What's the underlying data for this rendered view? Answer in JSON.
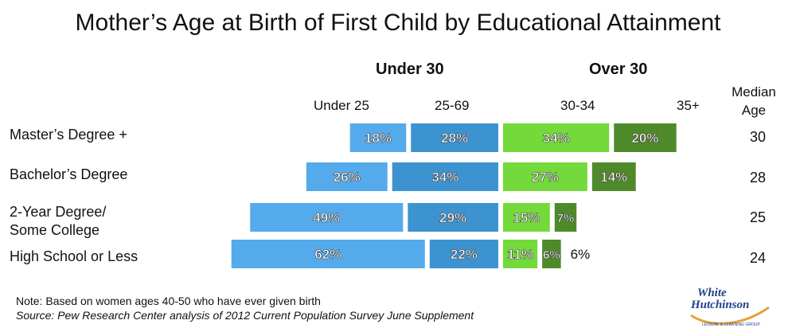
{
  "chart_data": {
    "type": "bar",
    "title": "Mother’s Age at Birth of First Child by Educational Attainment",
    "groups": [
      "Under 30",
      "Over 30"
    ],
    "segment_labels": [
      "Under 25",
      "25-69",
      "30-34",
      "35+"
    ],
    "categories": [
      [
        "Master’s Degree +"
      ],
      [
        "Bachelor’s Degree"
      ],
      [
        "2-Year Degree/",
        "Some College"
      ],
      [
        "High School or Less"
      ]
    ],
    "series": [
      {
        "name": "Under 25",
        "values": [
          18,
          26,
          49,
          62
        ],
        "labels": [
          "18%",
          "26%",
          "49%",
          "62%"
        ]
      },
      {
        "name": "25-69",
        "values": [
          28,
          34,
          29,
          22
        ],
        "labels": [
          "28%",
          "34%",
          "29%",
          "22%"
        ]
      },
      {
        "name": "30-34",
        "values": [
          34,
          27,
          15,
          11
        ],
        "labels": [
          "34%",
          "27%",
          "15%",
          "11%"
        ]
      },
      {
        "name": "35+",
        "values": [
          20,
          14,
          7,
          6
        ],
        "labels": [
          "20%",
          "14%",
          "7%",
          "6%"
        ]
      }
    ],
    "outside_label": "6%",
    "median_header": [
      "Median",
      "Age"
    ],
    "median_age": [
      "30",
      "28",
      "25",
      "24"
    ],
    "colors": [
      "#55aaec",
      "#3d93d0",
      "#74d93a",
      "#4f8a2a"
    ]
  },
  "footer": {
    "note": "Note: Based on women ages 40-50 who have ever given birth",
    "source": "Source: Pew Research Center analysis of 2012 Current Population Survey June Supplement"
  },
  "logo": {
    "line1": "White",
    "line2": "Hutchinson",
    "line3": "LEISURE & LEARNING GROUP"
  }
}
